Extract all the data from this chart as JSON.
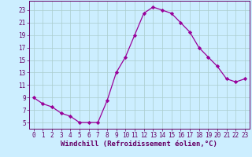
{
  "x": [
    0,
    1,
    2,
    3,
    4,
    5,
    6,
    7,
    8,
    9,
    10,
    11,
    12,
    13,
    14,
    15,
    16,
    17,
    18,
    19,
    20,
    21,
    22,
    23
  ],
  "y": [
    9,
    8,
    7.5,
    6.5,
    6,
    5,
    5,
    5,
    8.5,
    13,
    15.5,
    19,
    22.5,
    23.5,
    23,
    22.5,
    21,
    19.5,
    17,
    15.5,
    14,
    12,
    11.5,
    12
  ],
  "line_color": "#990099",
  "marker": "D",
  "marker_size": 2.2,
  "bg_color": "#cceeff",
  "grid_color": "#aacccc",
  "xlabel": "Windchill (Refroidissement éolien,°C)",
  "xlabel_color": "#660066",
  "tick_color": "#660066",
  "axis_color": "#660066",
  "xlim": [
    -0.5,
    23.5
  ],
  "ylim": [
    4,
    24.5
  ],
  "yticks": [
    5,
    7,
    9,
    11,
    13,
    15,
    17,
    19,
    21,
    23
  ],
  "xticks": [
    0,
    1,
    2,
    3,
    4,
    5,
    6,
    7,
    8,
    9,
    10,
    11,
    12,
    13,
    14,
    15,
    16,
    17,
    18,
    19,
    20,
    21,
    22,
    23
  ],
  "tick_fontsize": 5.5,
  "xlabel_fontsize": 6.5
}
